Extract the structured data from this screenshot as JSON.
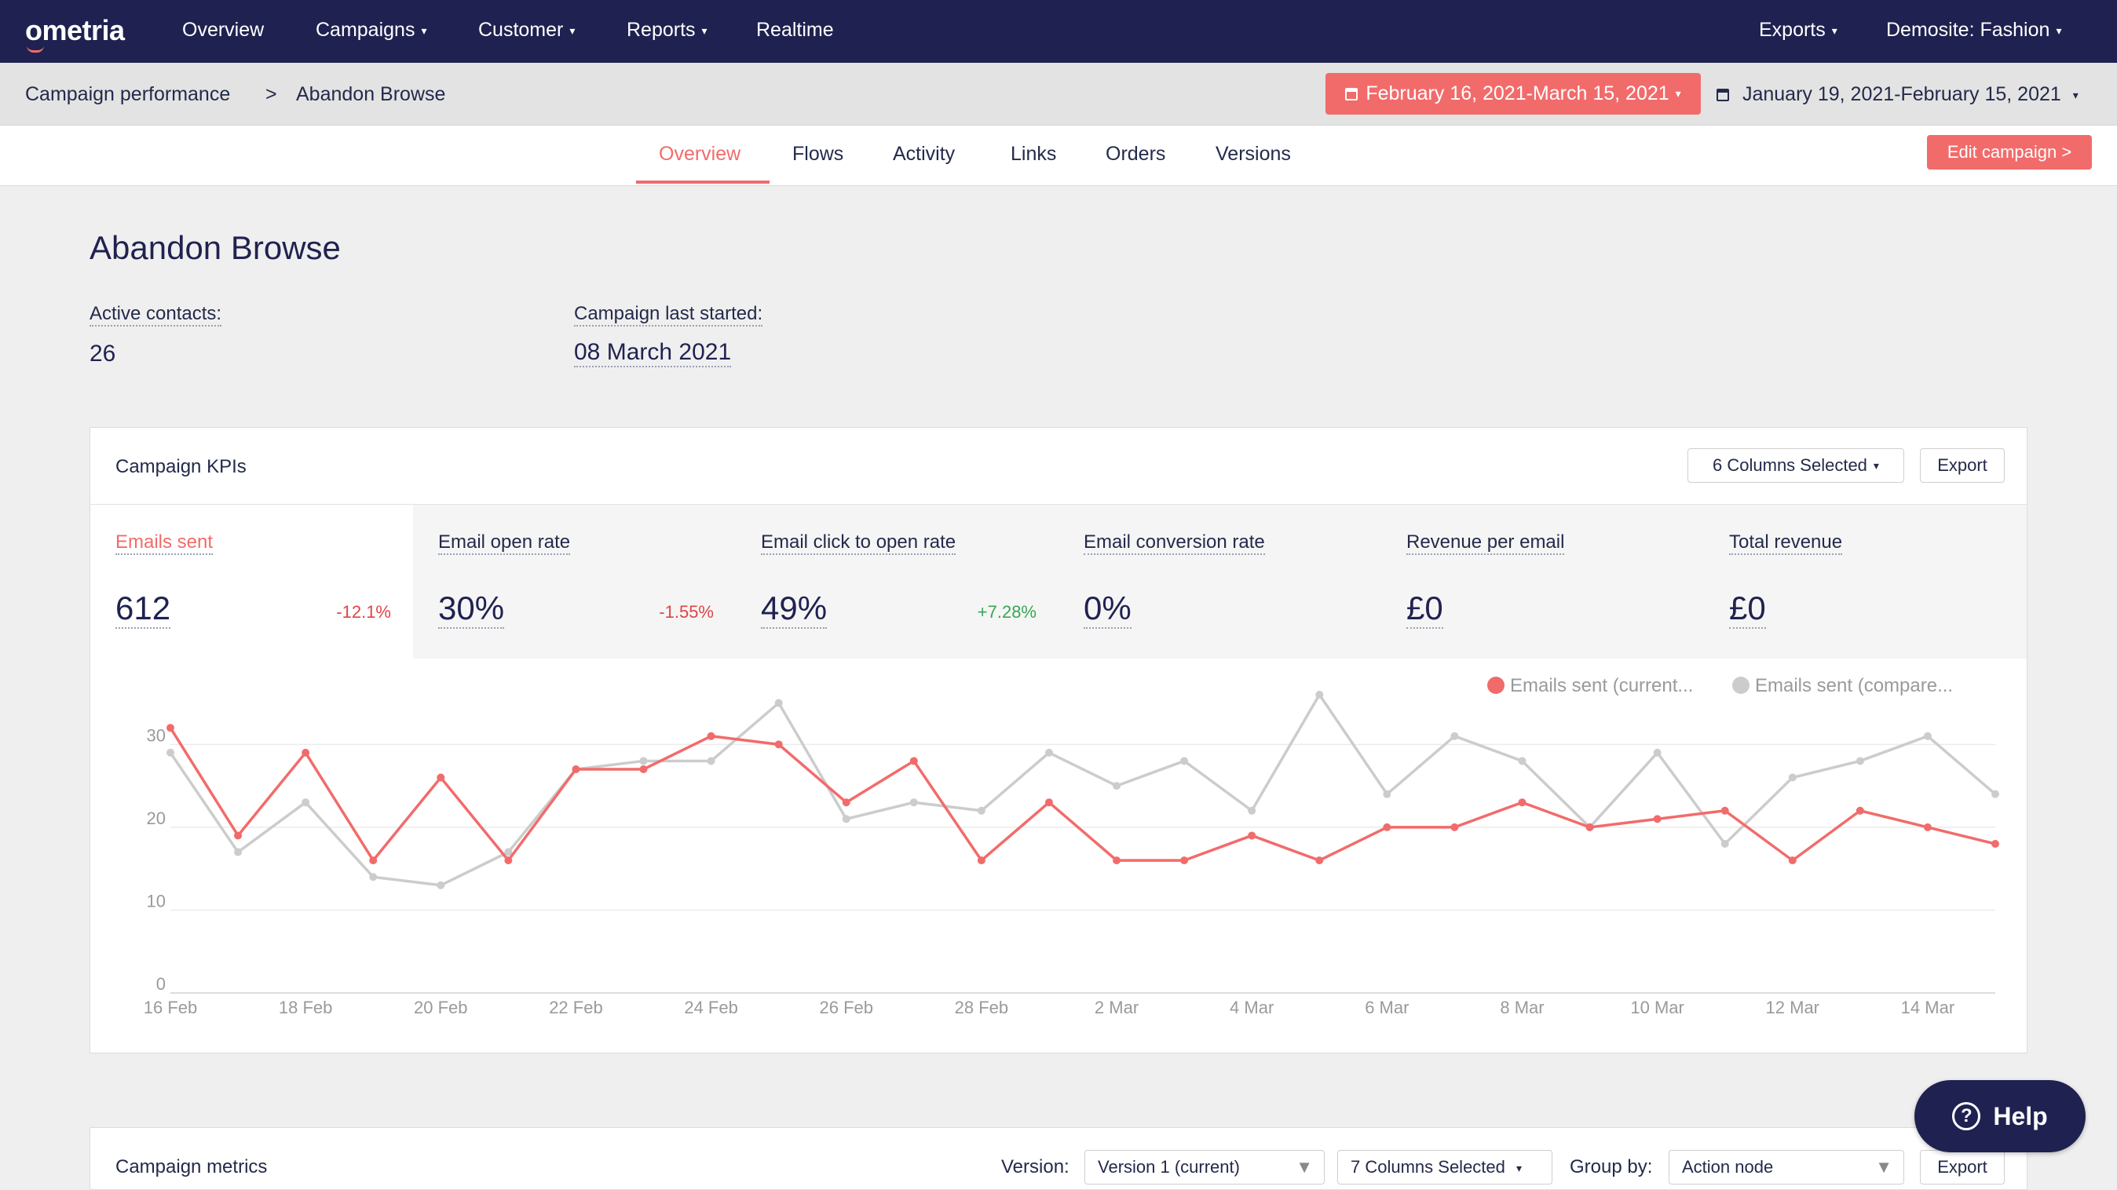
{
  "nav": {
    "logo": "ometria",
    "items": [
      "Overview",
      "Campaigns",
      "Customer",
      "Reports",
      "Realtime"
    ],
    "exports": "Exports",
    "site": "Demosite: Fashion"
  },
  "breadcrumb": {
    "parent": "Campaign performance",
    "separator": ">",
    "current": "Abandon Browse"
  },
  "dates": {
    "current": "February 16, 2021-March 15, 2021",
    "compare": "January 19, 2021-February 15, 2021"
  },
  "tabs": [
    "Overview",
    "Flows",
    "Activity",
    "Links",
    "Orders",
    "Versions"
  ],
  "edit_button": "Edit campaign >",
  "page": {
    "title": "Abandon Browse",
    "active_contacts_label": "Active contacts:",
    "active_contacts_value": "26",
    "last_started_label": "Campaign last started:",
    "last_started_value": "08 March 2021"
  },
  "kpis_card": {
    "title": "Campaign KPIs",
    "columns_button": "6 Columns Selected",
    "export_button": "Export",
    "kpis": [
      {
        "label": "Emails sent",
        "value": "612",
        "delta": "-12.1%",
        "delta_color": "#e04444"
      },
      {
        "label": "Email open rate",
        "value": "30%",
        "delta": "-1.55%",
        "delta_color": "#e04444"
      },
      {
        "label": "Email click to open rate",
        "value": "49%",
        "delta": "+7.28%",
        "delta_color": "#3aa655"
      },
      {
        "label": "Email conversion rate",
        "value": "0%",
        "delta": ""
      },
      {
        "label": "Revenue per email",
        "value": "£0",
        "delta": ""
      },
      {
        "label": "Total revenue",
        "value": "£0",
        "delta": ""
      }
    ]
  },
  "chart_data": {
    "type": "line",
    "x": [
      "16 Feb",
      "17 Feb",
      "18 Feb",
      "19 Feb",
      "20 Feb",
      "21 Feb",
      "22 Feb",
      "23 Feb",
      "24 Feb",
      "25 Feb",
      "26 Feb",
      "27 Feb",
      "28 Feb",
      "1 Mar",
      "2 Mar",
      "3 Mar",
      "4 Mar",
      "5 Mar",
      "6 Mar",
      "7 Mar",
      "8 Mar",
      "9 Mar",
      "10 Mar",
      "11 Mar",
      "12 Mar",
      "13 Mar",
      "14 Mar",
      "15 Mar"
    ],
    "x_tick_labels": [
      "16 Feb",
      "18 Feb",
      "20 Feb",
      "22 Feb",
      "24 Feb",
      "26 Feb",
      "28 Feb",
      "2 Mar",
      "4 Mar",
      "6 Mar",
      "8 Mar",
      "10 Mar",
      "12 Mar",
      "14 Mar"
    ],
    "y_ticks": [
      0,
      10,
      20,
      30
    ],
    "ylim": [
      0,
      36
    ],
    "grid": true,
    "legend_position": "top-right",
    "series": [
      {
        "name": "Emails sent (current...",
        "color": "#f26b6b",
        "values": [
          32,
          19,
          29,
          16,
          26,
          16,
          27,
          27,
          31,
          30,
          23,
          28,
          16,
          23,
          16,
          16,
          19,
          16,
          20,
          20,
          23,
          20,
          21,
          22,
          16,
          22,
          20,
          18
        ]
      },
      {
        "name": "Emails sent (compare...",
        "color": "#cccccc",
        "values": [
          29,
          17,
          23,
          14,
          13,
          17,
          27,
          28,
          28,
          35,
          21,
          23,
          22,
          29,
          25,
          28,
          22,
          36,
          24,
          31,
          28,
          20,
          29,
          18,
          26,
          28,
          31,
          24
        ]
      }
    ]
  },
  "metrics_card": {
    "title": "Campaign metrics",
    "version_label": "Version:",
    "version_value": "Version 1 (current)",
    "columns_button": "7 Columns Selected",
    "group_label": "Group by:",
    "group_value": "Action node",
    "export_button": "Export"
  },
  "help_button": "Help"
}
